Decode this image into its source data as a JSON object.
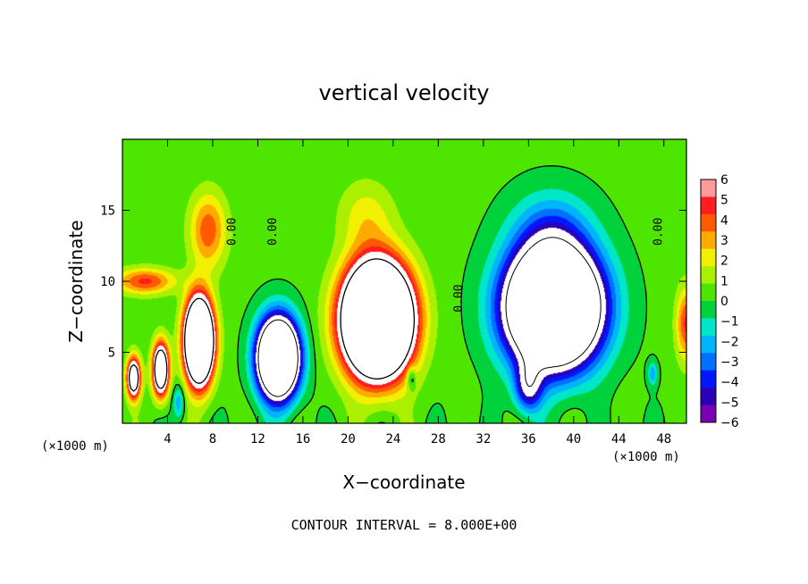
{
  "chart_data": {
    "type": "heatmap",
    "title": "vertical velocity",
    "xlabel": "X−coordinate",
    "ylabel": "Z−coordinate",
    "x_unit_left": "(×1000 m)",
    "x_unit_right": "(×1000 m)",
    "xlim": [
      0,
      50
    ],
    "ylim": [
      0,
      20
    ],
    "x_ticks": [
      4,
      8,
      12,
      16,
      20,
      24,
      28,
      32,
      36,
      40,
      44,
      48
    ],
    "x_tick_labels": [
      "4",
      "8",
      "12",
      "16",
      "20",
      "24",
      "28",
      "32",
      "36",
      "40",
      "44",
      "48"
    ],
    "y_ticks": [
      5,
      10,
      15
    ],
    "y_tick_labels": [
      "5",
      "10",
      "15"
    ],
    "footer": "CONTOUR INTERVAL = 8.000E+00",
    "contour_interval": 8,
    "colorbar": {
      "min": -6,
      "max": 6,
      "levels": [
        6,
        5,
        4,
        3,
        2,
        1,
        0,
        -1,
        -2,
        -3,
        -4,
        -5,
        -6
      ],
      "labels": [
        "6",
        "5",
        "4",
        "3",
        "2",
        "1",
        "0",
        "−1",
        "−2",
        "−3",
        "−4",
        "−5",
        "−6"
      ]
    },
    "zero_contour_labels": [
      {
        "text": "0.00",
        "x": 9.7,
        "z": 13.5
      },
      {
        "text": "0.00",
        "x": 13.3,
        "z": 13.5
      },
      {
        "text": "0.00",
        "x": 29.8,
        "z": 8.8
      },
      {
        "text": "0.00",
        "x": 47.5,
        "z": 13.5
      }
    ],
    "features": [
      {
        "name": "updraft-left-1",
        "x": 1.0,
        "z": 3.2,
        "w": 12,
        "sx": 0.6,
        "sz": 1.4
      },
      {
        "name": "updraft-left-2",
        "x": 3.4,
        "z": 3.8,
        "w": 14,
        "sx": 0.7,
        "sz": 1.8
      },
      {
        "name": "updraft-left-3",
        "x": 6.8,
        "z": 5.8,
        "w": 24,
        "sx": 1.2,
        "sz": 2.8
      },
      {
        "name": "updraft-left-upper",
        "x": 7.6,
        "z": 13.6,
        "w": 4.5,
        "sx": 1.6,
        "sz": 2.6
      },
      {
        "name": "updraft-left-shelf",
        "x": 2.0,
        "z": 10.0,
        "w": 5,
        "sx": 2.6,
        "sz": 0.9
      },
      {
        "name": "updraft-center",
        "x": 22.6,
        "z": 7.3,
        "w": 30,
        "sx": 2.8,
        "sz": 3.6
      },
      {
        "name": "updraft-center-upper",
        "x": 21.6,
        "z": 14.6,
        "w": 2.2,
        "sx": 2.4,
        "sz": 2.5
      },
      {
        "name": "updraft-right-edge",
        "x": 50.0,
        "z": 7.0,
        "w": 5,
        "sx": 0.9,
        "sz": 2.5
      },
      {
        "name": "downdraft-left",
        "x": 13.8,
        "z": 4.6,
        "w": -24,
        "sx": 1.7,
        "sz": 2.6
      },
      {
        "name": "downdraft-right",
        "x": 38.2,
        "z": 8.2,
        "w": -28,
        "sx": 3.8,
        "sz": 3.8
      },
      {
        "name": "downdraft-right-upper",
        "x": 38.0,
        "z": 13.6,
        "w": -3,
        "sx": 3.4,
        "sz": 2.8
      },
      {
        "name": "downdraft-right-low",
        "x": 36.0,
        "z": 2.6,
        "w": -6,
        "sx": 1.2,
        "sz": 1.8
      },
      {
        "name": "downdraft-small-25",
        "x": 25.6,
        "z": 3.2,
        "w": -3,
        "sx": 0.4,
        "sz": 0.8
      },
      {
        "name": "downdraft-small-47",
        "x": 47.0,
        "z": 3.5,
        "w": -3,
        "sx": 0.4,
        "sz": 0.8
      },
      {
        "name": "downdraft-small-5",
        "x": 5.0,
        "z": 1.5,
        "w": -3,
        "sx": 0.5,
        "sz": 1.2
      }
    ]
  }
}
